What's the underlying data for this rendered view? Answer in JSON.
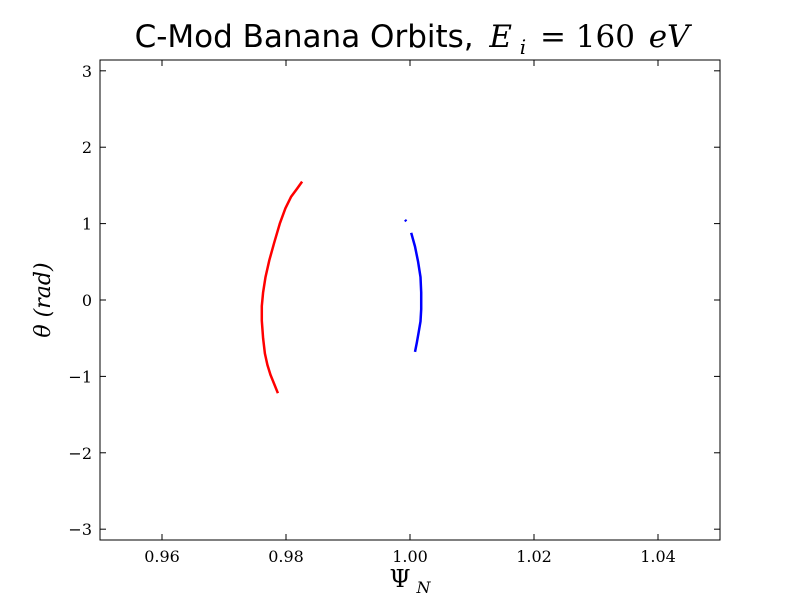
{
  "chart_data": {
    "type": "line",
    "title_main": "C-Mod Banana Orbits,",
    "title_math": {
      "var": "E",
      "sub": "i",
      "rest_value": "= 160",
      "rest_unit": "eV"
    },
    "xlabel": {
      "symbol": "Ψ",
      "sub": "N"
    },
    "ylabel": "θ (rad)",
    "xlim": [
      0.95,
      1.05
    ],
    "ylim": [
      -3.14159,
      3.14159
    ],
    "xticks": [
      {
        "value": 0.96,
        "label": "0.96"
      },
      {
        "value": 0.98,
        "label": "0.98"
      },
      {
        "value": 1.0,
        "label": "1.00"
      },
      {
        "value": 1.02,
        "label": "1.02"
      },
      {
        "value": 1.04,
        "label": "1.04"
      }
    ],
    "yticks": [
      {
        "value": 3,
        "label": "3"
      },
      {
        "value": 2,
        "label": "2"
      },
      {
        "value": 1,
        "label": "1"
      },
      {
        "value": 0,
        "label": "0"
      },
      {
        "value": -1,
        "label": "−1"
      },
      {
        "value": -2,
        "label": "−2"
      },
      {
        "value": -3,
        "label": "−3"
      }
    ],
    "grid": false,
    "series": [
      {
        "color": "#ff0000",
        "x": [
          0.9826,
          0.9818,
          0.9808,
          0.9799,
          0.979,
          0.9781,
          0.9773,
          0.9767,
          0.9763,
          0.9761,
          0.9761,
          0.9763,
          0.9766,
          0.977,
          0.9775,
          0.9781,
          0.9787
        ],
        "y": [
          1.55,
          1.46,
          1.35,
          1.2,
          1.0,
          0.75,
          0.52,
          0.3,
          0.1,
          -0.08,
          -0.27,
          -0.5,
          -0.7,
          -0.85,
          -0.98,
          -1.1,
          -1.22
        ]
      },
      {
        "color": "#0000ff",
        "x": [
          1.0002,
          1.0008,
          1.0013,
          1.0017,
          1.0018,
          1.0018,
          1.0017,
          1.0014,
          1.0011,
          1.0008
        ],
        "y": [
          0.88,
          0.7,
          0.5,
          0.3,
          0.1,
          -0.12,
          -0.28,
          -0.42,
          -0.56,
          -0.68
        ]
      },
      {
        "color": "#0000ff",
        "x": [
          0.9992,
          0.9994
        ],
        "y": [
          1.05,
          1.03
        ]
      }
    ]
  }
}
